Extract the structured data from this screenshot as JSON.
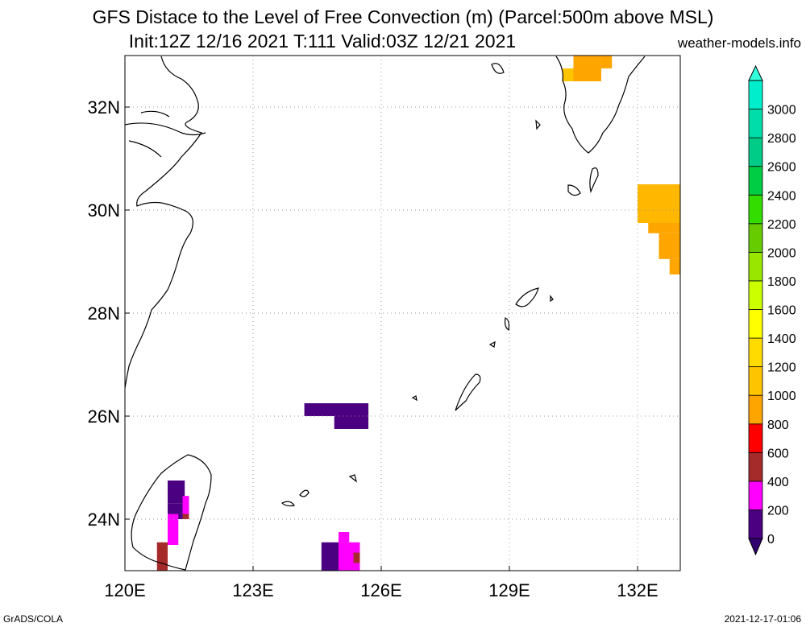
{
  "title_line1": "GFS Distace to the Level of Free Convection (m) (Parcel:500m above MSL)",
  "title_line2": "Init:12Z 12/16 2021 T:111 Valid:03Z 12/21 2021",
  "source": "weather-models.info",
  "footer_left": "GrADS/COLA",
  "footer_right": "2021-12-17-01:06",
  "map": {
    "lon_range": [
      120.0,
      133.0
    ],
    "lat_range": [
      23.0,
      33.0
    ],
    "lon_ticks": [
      {
        "v": 120,
        "label": "120E"
      },
      {
        "v": 123,
        "label": "123E"
      },
      {
        "v": 126,
        "label": "126E"
      },
      {
        "v": 129,
        "label": "129E"
      },
      {
        "v": 132,
        "label": "132E"
      }
    ],
    "lat_ticks": [
      {
        "v": 24,
        "label": "24N"
      },
      {
        "v": 26,
        "label": "26N"
      },
      {
        "v": 28,
        "label": "28N"
      },
      {
        "v": 30,
        "label": "30N"
      },
      {
        "v": 32,
        "label": "32N"
      }
    ],
    "grid": "dotted",
    "coast_color": "#000000"
  },
  "colorbar": {
    "levels": [
      "0",
      "200",
      "400",
      "600",
      "800",
      "1000",
      "1200",
      "1400",
      "1600",
      "1800",
      "2000",
      "2200",
      "2400",
      "2600",
      "2800",
      "3000"
    ],
    "colors": [
      "#4b0082",
      "#ff00ff",
      "#a52a2a",
      "#ff0000",
      "#ffa500",
      "#ffc400",
      "#ffdb00",
      "#ffff00",
      "#ccff00",
      "#99e600",
      "#66cc00",
      "#33dd00",
      "#00cc44",
      "#00cc88",
      "#00ddaa",
      "#00eecc"
    ],
    "under_color": "#300070",
    "over_color": "#33ffdd"
  },
  "fill_cells": [
    {
      "lon0": 124.2,
      "lon1": 125.7,
      "lat0": 26.0,
      "lat1": 26.25,
      "color": "#4b0082"
    },
    {
      "lon0": 124.9,
      "lon1": 125.7,
      "lat0": 25.75,
      "lat1": 26.0,
      "color": "#4b0082"
    },
    {
      "lon0": 121.0,
      "lon1": 121.4,
      "lat0": 24.3,
      "lat1": 24.75,
      "color": "#4b0082"
    },
    {
      "lon0": 121.0,
      "lon1": 121.5,
      "lat0": 24.0,
      "lat1": 24.3,
      "color": "#4b0082"
    },
    {
      "lon0": 121.35,
      "lon1": 121.5,
      "lat0": 24.1,
      "lat1": 24.45,
      "color": "#ff00ff"
    },
    {
      "lon0": 121.0,
      "lon1": 121.25,
      "lat0": 23.5,
      "lat1": 24.1,
      "color": "#ff00ff"
    },
    {
      "lon0": 121.35,
      "lon1": 121.5,
      "lat0": 24.0,
      "lat1": 24.1,
      "color": "#a52a2a"
    },
    {
      "lon0": 120.75,
      "lon1": 121.0,
      "lat0": 23.0,
      "lat1": 23.55,
      "color": "#a52a2a"
    },
    {
      "lon0": 124.6,
      "lon1": 125.1,
      "lat0": 23.0,
      "lat1": 23.55,
      "color": "#4b0082"
    },
    {
      "lon0": 125.0,
      "lon1": 125.25,
      "lat0": 23.55,
      "lat1": 23.75,
      "color": "#ff00ff"
    },
    {
      "lon0": 125.0,
      "lon1": 125.5,
      "lat0": 23.0,
      "lat1": 23.55,
      "color": "#ff00ff"
    },
    {
      "lon0": 125.35,
      "lon1": 125.5,
      "lat0": 23.15,
      "lat1": 23.35,
      "color": "#a52a2a"
    },
    {
      "lon0": 130.25,
      "lon1": 130.65,
      "lat0": 32.5,
      "lat1": 32.75,
      "color": "#ffc400"
    },
    {
      "lon0": 130.5,
      "lon1": 131.15,
      "lat0": 32.5,
      "lat1": 33.0,
      "color": "#ffa500"
    },
    {
      "lon0": 131.15,
      "lon1": 131.4,
      "lat0": 32.75,
      "lat1": 33.0,
      "color": "#ffa500"
    },
    {
      "lon0": 132.0,
      "lon1": 133.0,
      "lat0": 29.75,
      "lat1": 30.5,
      "color": "#ffb700"
    },
    {
      "lon0": 132.25,
      "lon1": 133.0,
      "lat0": 29.55,
      "lat1": 29.75,
      "color": "#ffa500"
    },
    {
      "lon0": 132.5,
      "lon1": 133.0,
      "lat0": 29.05,
      "lat1": 29.55,
      "color": "#ffa500"
    },
    {
      "lon0": 132.75,
      "lon1": 133.0,
      "lat0": 28.75,
      "lat1": 29.05,
      "color": "#ffa500"
    }
  ]
}
